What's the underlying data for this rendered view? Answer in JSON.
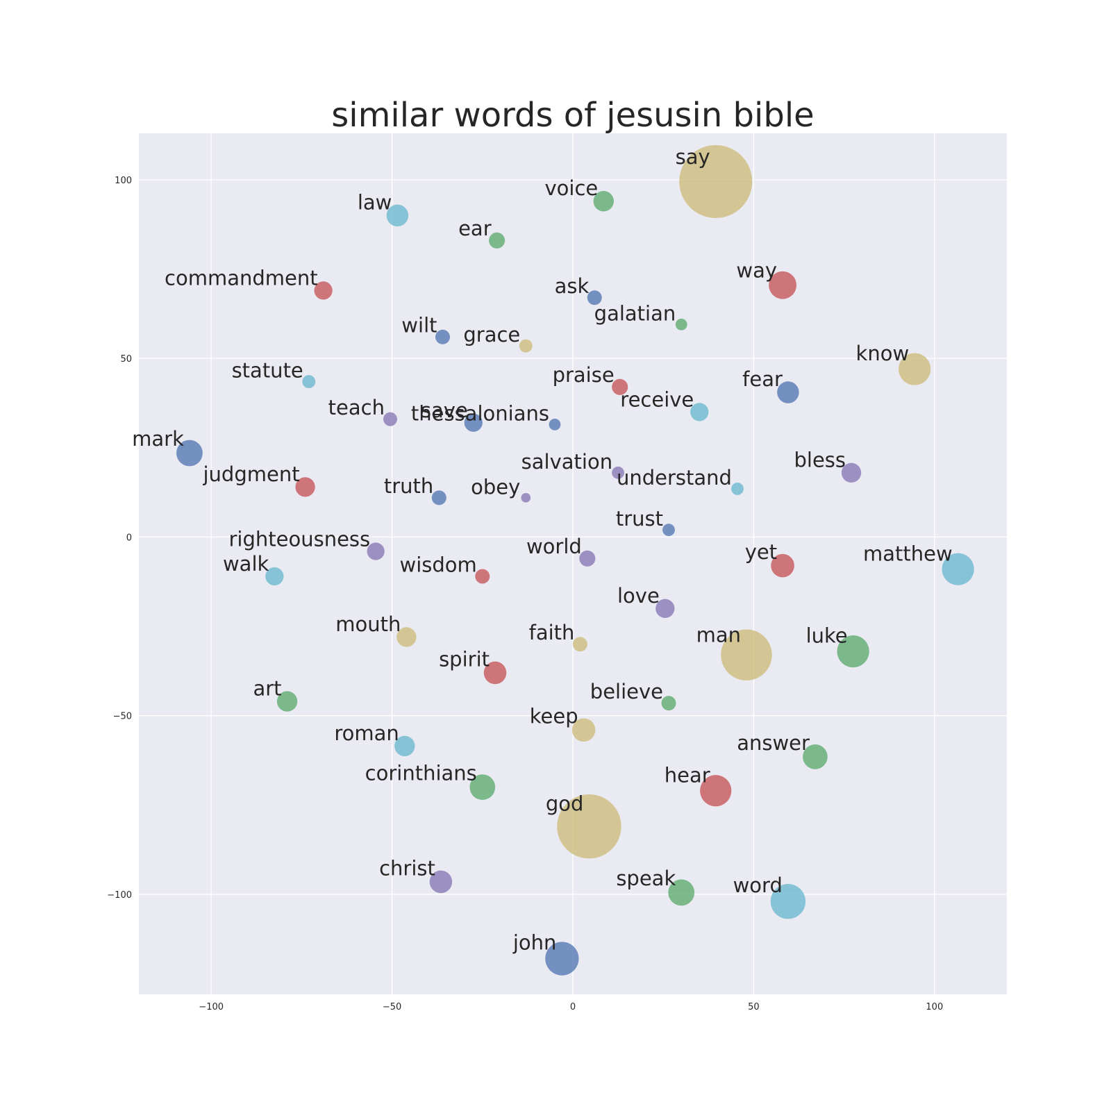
{
  "chart_data": {
    "type": "scatter",
    "title": "similar words of jesusin bible",
    "xlabel": "",
    "ylabel": "",
    "xlim": [
      -120,
      120
    ],
    "ylim": [
      -128,
      113
    ],
    "x_ticks": [
      -100,
      -50,
      0,
      50,
      100
    ],
    "y_ticks": [
      100,
      50,
      0,
      -50,
      -100
    ],
    "x_tick_labels": [
      "−100",
      "−50",
      "0",
      "50",
      "100"
    ],
    "y_tick_labels": [
      "100",
      "50",
      "0",
      "−50",
      "−100"
    ],
    "grid": true,
    "colors": {
      "blue": "#4c72b0",
      "green": "#55a868",
      "red": "#c44e52",
      "purple": "#8172b2",
      "tan": "#ccb974",
      "cyan": "#64b5cd",
      "plot_bg": "#eaeaf2",
      "grid": "#ffffff"
    },
    "points": [
      {
        "label": "say",
        "x": 39.5,
        "y": 99.5,
        "size": 50,
        "color": "tan"
      },
      {
        "label": "voice",
        "x": 8.5,
        "y": 94,
        "size": 14,
        "color": "green"
      },
      {
        "label": "law",
        "x": -48.5,
        "y": 90,
        "size": 15,
        "color": "cyan"
      },
      {
        "label": "ear",
        "x": -21,
        "y": 83,
        "size": 11,
        "color": "green"
      },
      {
        "label": "commandment",
        "x": -69,
        "y": 69,
        "size": 12.5,
        "color": "red"
      },
      {
        "label": "ask",
        "x": 6,
        "y": 67,
        "size": 10,
        "color": "blue"
      },
      {
        "label": "way",
        "x": 58,
        "y": 70.5,
        "size": 19,
        "color": "red"
      },
      {
        "label": "galatian",
        "x": 30,
        "y": 59.5,
        "size": 8,
        "color": "green"
      },
      {
        "label": "wilt",
        "x": -36,
        "y": 56,
        "size": 10,
        "color": "blue"
      },
      {
        "label": "grace",
        "x": -13,
        "y": 53.5,
        "size": 9,
        "color": "tan"
      },
      {
        "label": "know",
        "x": 94.5,
        "y": 47,
        "size": 22,
        "color": "tan"
      },
      {
        "label": "statute",
        "x": -73,
        "y": 43.5,
        "size": 9,
        "color": "cyan"
      },
      {
        "label": "praise",
        "x": 13,
        "y": 42,
        "size": 11,
        "color": "red"
      },
      {
        "label": "fear",
        "x": 59.5,
        "y": 40.5,
        "size": 15,
        "color": "blue"
      },
      {
        "label": "receive",
        "x": 35,
        "y": 35,
        "size": 12.5,
        "color": "cyan"
      },
      {
        "label": "teach",
        "x": -50.5,
        "y": 33,
        "size": 9.5,
        "color": "purple"
      },
      {
        "label": "save",
        "x": -27.5,
        "y": 32,
        "size": 12.5,
        "color": "blue"
      },
      {
        "label": "thessalonians",
        "x": -5,
        "y": 31.5,
        "size": 8,
        "color": "blue"
      },
      {
        "label": "mark",
        "x": -106,
        "y": 23.5,
        "size": 18,
        "color": "blue"
      },
      {
        "label": "bless",
        "x": 77,
        "y": 18,
        "size": 13.5,
        "color": "purple"
      },
      {
        "label": "salvation",
        "x": 12.5,
        "y": 18,
        "size": 8.5,
        "color": "purple"
      },
      {
        "label": "understand",
        "x": 45.5,
        "y": 13.5,
        "size": 8.5,
        "color": "cyan"
      },
      {
        "label": "judgment",
        "x": -74,
        "y": 14,
        "size": 13.5,
        "color": "red"
      },
      {
        "label": "truth",
        "x": -37,
        "y": 11,
        "size": 10,
        "color": "blue"
      },
      {
        "label": "obey",
        "x": -13,
        "y": 11,
        "size": 6.5,
        "color": "purple"
      },
      {
        "label": "trust",
        "x": 26.5,
        "y": 2,
        "size": 8.5,
        "color": "blue"
      },
      {
        "label": "righteousness",
        "x": -54.5,
        "y": -4,
        "size": 12,
        "color": "purple"
      },
      {
        "label": "world",
        "x": 4,
        "y": -6,
        "size": 11,
        "color": "purple"
      },
      {
        "label": "yet",
        "x": 58,
        "y": -8,
        "size": 16,
        "color": "red"
      },
      {
        "label": "matthew",
        "x": 106.5,
        "y": -9,
        "size": 22,
        "color": "cyan"
      },
      {
        "label": "walk",
        "x": -82.5,
        "y": -11,
        "size": 12.5,
        "color": "cyan"
      },
      {
        "label": "wisdom",
        "x": -25,
        "y": -11,
        "size": 10,
        "color": "red"
      },
      {
        "label": "love",
        "x": 25.5,
        "y": -20,
        "size": 13,
        "color": "purple"
      },
      {
        "label": "mouth",
        "x": -46,
        "y": -28,
        "size": 13.5,
        "color": "tan"
      },
      {
        "label": "faith",
        "x": 2,
        "y": -30,
        "size": 10,
        "color": "tan"
      },
      {
        "label": "man",
        "x": 48,
        "y": -33,
        "size": 35,
        "color": "tan"
      },
      {
        "label": "luke",
        "x": 77.5,
        "y": -32,
        "size": 22,
        "color": "green"
      },
      {
        "label": "spirit",
        "x": -21.5,
        "y": -38,
        "size": 15.5,
        "color": "red"
      },
      {
        "label": "art",
        "x": -79,
        "y": -46,
        "size": 14,
        "color": "green"
      },
      {
        "label": "believe",
        "x": 26.5,
        "y": -46.5,
        "size": 10,
        "color": "green"
      },
      {
        "label": "keep",
        "x": 3,
        "y": -54,
        "size": 16,
        "color": "tan"
      },
      {
        "label": "roman",
        "x": -46.5,
        "y": -58.5,
        "size": 14,
        "color": "cyan"
      },
      {
        "label": "answer",
        "x": 67,
        "y": -61.5,
        "size": 17,
        "color": "green"
      },
      {
        "label": "corinthians",
        "x": -25,
        "y": -70,
        "size": 17.5,
        "color": "green"
      },
      {
        "label": "hear",
        "x": 39.5,
        "y": -71,
        "size": 21.5,
        "color": "red"
      },
      {
        "label": "god",
        "x": 4.5,
        "y": -81,
        "size": 44,
        "color": "tan"
      },
      {
        "label": "christ",
        "x": -36.5,
        "y": -96.5,
        "size": 15.5,
        "color": "purple"
      },
      {
        "label": "speak",
        "x": 30,
        "y": -99.5,
        "size": 18,
        "color": "green"
      },
      {
        "label": "word",
        "x": 59.5,
        "y": -102,
        "size": 24,
        "color": "cyan"
      },
      {
        "label": "john",
        "x": -3,
        "y": -118,
        "size": 23,
        "color": "blue"
      }
    ]
  }
}
